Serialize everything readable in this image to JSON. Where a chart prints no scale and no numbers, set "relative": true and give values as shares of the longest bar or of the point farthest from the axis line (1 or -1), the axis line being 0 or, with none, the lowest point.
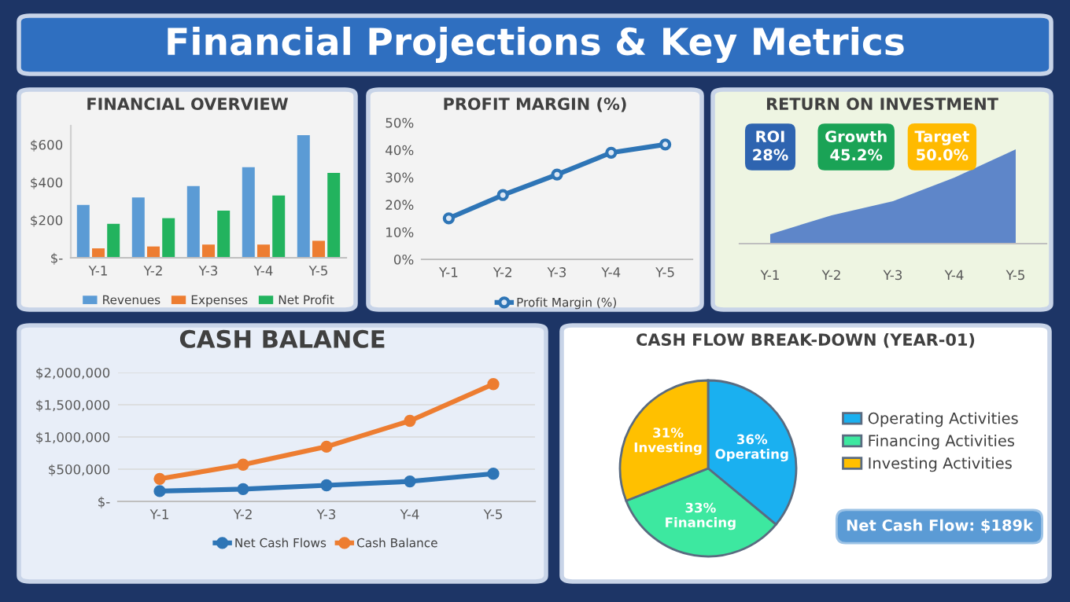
{
  "chart_data": [
    {
      "type": "other",
      "title": "Financial Projections & Key Metrics"
    },
    {
      "type": "bar",
      "title": "FINANCIAL OVERVIEW",
      "categories": [
        "Y-1",
        "Y-2",
        "Y-3",
        "Y-4",
        "Y-5"
      ],
      "series": [
        {
          "name": "Revenues",
          "color": "#5b9bd5",
          "values": [
            280,
            320,
            380,
            480,
            650
          ]
        },
        {
          "name": "Expenses",
          "color": "#ed7d31",
          "values": [
            50,
            60,
            70,
            70,
            90
          ]
        },
        {
          "name": "Net Profit",
          "color": "#22b35e",
          "values": [
            180,
            210,
            250,
            330,
            450
          ]
        }
      ],
      "ylim": [
        0,
        700
      ],
      "yticks": [
        {
          "value": 0,
          "label": "$-"
        },
        {
          "value": 200,
          "label": "$200"
        },
        {
          "value": 400,
          "label": "$400"
        },
        {
          "value": 600,
          "label": "$600"
        }
      ],
      "legend": "bottom"
    },
    {
      "type": "line",
      "title": "PROFIT MARGIN (%)",
      "categories": [
        "Y-1",
        "Y-2",
        "Y-3",
        "Y-4",
        "Y-5"
      ],
      "series": [
        {
          "name": "Profit Margin (%)",
          "color": "#2e75b6",
          "values": [
            15,
            23.5,
            31,
            39,
            42
          ]
        }
      ],
      "ylim": [
        0,
        50
      ],
      "yticks": [
        {
          "value": 0,
          "label": "0%"
        },
        {
          "value": 10,
          "label": "10%"
        },
        {
          "value": 20,
          "label": "20%"
        },
        {
          "value": 30,
          "label": "30%"
        },
        {
          "value": 40,
          "label": "40%"
        },
        {
          "value": 50,
          "label": "50%"
        }
      ],
      "marker": "circle",
      "legend": "bottom"
    },
    {
      "type": "area",
      "title": "RETURN ON INVESTMENT",
      "categories": [
        "Y-1",
        "Y-2",
        "Y-3",
        "Y-4",
        "Y-5"
      ],
      "series": [
        {
          "color": "#4472c4",
          "values": [
            0.1,
            0.3,
            0.45,
            0.7,
            1
          ]
        }
      ],
      "relative": true,
      "annotations": [
        "ROI\n28%",
        "Growth\n45.2%",
        "Target\n50.0%"
      ]
    },
    {
      "type": "line",
      "title": "CASH BALANCE",
      "categories": [
        "Y-1",
        "Y-2",
        "Y-3",
        "Y-4",
        "Y-5"
      ],
      "series": [
        {
          "name": "Net Cash Flows",
          "color": "#2e75b6",
          "values": [
            160000,
            190000,
            250000,
            310000,
            430000
          ]
        },
        {
          "name": "Cash Balance",
          "color": "#ed7d31",
          "values": [
            350000,
            570000,
            850000,
            1250000,
            1820000
          ]
        }
      ],
      "ylim": [
        0,
        2000000
      ],
      "yticks": [
        {
          "value": 0,
          "label": "$-"
        },
        {
          "value": 500000,
          "label": "$500,000"
        },
        {
          "value": 1000000,
          "label": "$1,000,000"
        },
        {
          "value": 1500000,
          "label": "$1,500,000"
        },
        {
          "value": 2000000,
          "label": "$2,000,000"
        }
      ],
      "marker": "circle",
      "grid": "y",
      "legend": "bottom"
    },
    {
      "type": "pie",
      "title": "CASH FLOW BREAK-DOWN (YEAR-01)",
      "categories": [
        "Operating Activities",
        "Financing Activities",
        "Investing Activities"
      ],
      "values": [
        36,
        33,
        31
      ],
      "colors": [
        "#1ab0f0",
        "#3de8a0",
        "#ffc000"
      ],
      "value_labels": [
        "36%\nOperating",
        "33%\nFinancing",
        "31%\nInvesting"
      ],
      "legend": "right",
      "annotations": [
        "Net Cash Flow: $189k"
      ]
    }
  ]
}
